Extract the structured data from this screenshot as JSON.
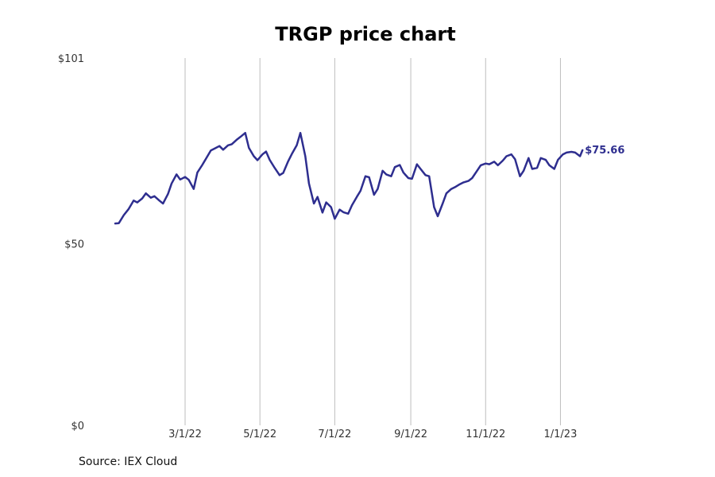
{
  "chart_data": {
    "type": "line",
    "title": "TRGP price chart",
    "xlabel": "",
    "ylabel": "",
    "ylim": [
      0,
      101
    ],
    "y_ticks": [
      0,
      50,
      101
    ],
    "y_tick_labels": [
      "$0",
      "$50",
      "$101"
    ],
    "x_ticks": [
      "2022-03-01",
      "2022-05-01",
      "2022-07-01",
      "2022-09-01",
      "2022-11-01",
      "2023-01-01"
    ],
    "x_tick_labels": [
      "3/1/22",
      "5/1/22",
      "7/1/22",
      "9/1/22",
      "11/1/22",
      "1/1/23"
    ],
    "xlim": [
      "2022-01-03",
      "2023-02-17"
    ],
    "grid": "vertical",
    "color": "#2e2e8f",
    "last_value_label": "$75.66",
    "series": [
      {
        "name": "",
        "points": [
          [
            "2022-01-03",
            55.5
          ],
          [
            "2022-01-06",
            55.6
          ],
          [
            "2022-01-10",
            57.8
          ],
          [
            "2022-01-14",
            59.5
          ],
          [
            "2022-01-18",
            61.8
          ],
          [
            "2022-01-21",
            61.3
          ],
          [
            "2022-01-25",
            62.4
          ],
          [
            "2022-01-28",
            63.8
          ],
          [
            "2022-02-01",
            62.6
          ],
          [
            "2022-02-04",
            63.0
          ],
          [
            "2022-02-08",
            61.8
          ],
          [
            "2022-02-11",
            61.0
          ],
          [
            "2022-02-15",
            63.6
          ],
          [
            "2022-02-18",
            66.5
          ],
          [
            "2022-02-22",
            69.0
          ],
          [
            "2022-02-25",
            67.6
          ],
          [
            "2022-03-01",
            68.3
          ],
          [
            "2022-03-04",
            67.5
          ],
          [
            "2022-03-08",
            65.0
          ],
          [
            "2022-03-11",
            69.5
          ],
          [
            "2022-03-15",
            71.6
          ],
          [
            "2022-03-18",
            73.3
          ],
          [
            "2022-03-22",
            75.6
          ],
          [
            "2022-03-25",
            76.1
          ],
          [
            "2022-03-29",
            76.8
          ],
          [
            "2022-04-01",
            75.8
          ],
          [
            "2022-04-05",
            77.0
          ],
          [
            "2022-04-08",
            77.3
          ],
          [
            "2022-04-12",
            78.5
          ],
          [
            "2022-04-15",
            79.3
          ],
          [
            "2022-04-19",
            80.4
          ],
          [
            "2022-04-22",
            76.3
          ],
          [
            "2022-04-26",
            74.0
          ],
          [
            "2022-04-29",
            72.9
          ],
          [
            "2022-05-03",
            74.5
          ],
          [
            "2022-05-06",
            75.3
          ],
          [
            "2022-05-09",
            73.0
          ],
          [
            "2022-05-13",
            70.8
          ],
          [
            "2022-05-17",
            68.8
          ],
          [
            "2022-05-20",
            69.4
          ],
          [
            "2022-05-24",
            72.6
          ],
          [
            "2022-05-27",
            74.6
          ],
          [
            "2022-05-31",
            77.0
          ],
          [
            "2022-06-03",
            80.4
          ],
          [
            "2022-06-07",
            74.0
          ],
          [
            "2022-06-10",
            66.5
          ],
          [
            "2022-06-14",
            61.0
          ],
          [
            "2022-06-17",
            62.8
          ],
          [
            "2022-06-21",
            58.5
          ],
          [
            "2022-06-24",
            61.3
          ],
          [
            "2022-06-28",
            60.0
          ],
          [
            "2022-07-01",
            56.8
          ],
          [
            "2022-07-05",
            59.3
          ],
          [
            "2022-07-08",
            58.6
          ],
          [
            "2022-07-12",
            58.2
          ],
          [
            "2022-07-15",
            60.5
          ],
          [
            "2022-07-19",
            62.8
          ],
          [
            "2022-07-22",
            64.5
          ],
          [
            "2022-07-26",
            68.5
          ],
          [
            "2022-07-29",
            68.2
          ],
          [
            "2022-08-02",
            63.4
          ],
          [
            "2022-08-05",
            65.0
          ],
          [
            "2022-08-09",
            70.0
          ],
          [
            "2022-08-12",
            69.0
          ],
          [
            "2022-08-16",
            68.5
          ],
          [
            "2022-08-19",
            71.0
          ],
          [
            "2022-08-23",
            71.6
          ],
          [
            "2022-08-26",
            69.5
          ],
          [
            "2022-08-30",
            68.0
          ],
          [
            "2022-09-02",
            67.8
          ],
          [
            "2022-09-06",
            71.8
          ],
          [
            "2022-09-09",
            70.5
          ],
          [
            "2022-09-13",
            68.8
          ],
          [
            "2022-09-16",
            68.5
          ],
          [
            "2022-09-20",
            60.0
          ],
          [
            "2022-09-23",
            57.5
          ],
          [
            "2022-09-27",
            61.0
          ],
          [
            "2022-09-30",
            63.8
          ],
          [
            "2022-10-04",
            65.0
          ],
          [
            "2022-10-07",
            65.5
          ],
          [
            "2022-10-11",
            66.3
          ],
          [
            "2022-10-14",
            66.8
          ],
          [
            "2022-10-18",
            67.2
          ],
          [
            "2022-10-21",
            68.0
          ],
          [
            "2022-10-25",
            70.0
          ],
          [
            "2022-10-28",
            71.5
          ],
          [
            "2022-11-01",
            72.0
          ],
          [
            "2022-11-04",
            71.8
          ],
          [
            "2022-11-08",
            72.5
          ],
          [
            "2022-11-11",
            71.5
          ],
          [
            "2022-11-15",
            72.8
          ],
          [
            "2022-11-18",
            74.0
          ],
          [
            "2022-11-22",
            74.5
          ],
          [
            "2022-11-25",
            73.2
          ],
          [
            "2022-11-29",
            68.5
          ],
          [
            "2022-12-02",
            70.0
          ],
          [
            "2022-12-06",
            73.5
          ],
          [
            "2022-12-09",
            70.5
          ],
          [
            "2022-12-13",
            70.8
          ],
          [
            "2022-12-16",
            73.5
          ],
          [
            "2022-12-20",
            73.0
          ],
          [
            "2022-12-23",
            71.5
          ],
          [
            "2022-12-27",
            70.5
          ],
          [
            "2022-12-30",
            73.0
          ],
          [
            "2023-01-03",
            74.5
          ],
          [
            "2023-01-06",
            75.0
          ],
          [
            "2023-01-10",
            75.2
          ],
          [
            "2023-01-13",
            75.0
          ],
          [
            "2023-01-17",
            74.0
          ],
          [
            "2023-01-19",
            75.66
          ]
        ]
      }
    ]
  },
  "footer": {
    "source": "Source: IEX Cloud"
  }
}
